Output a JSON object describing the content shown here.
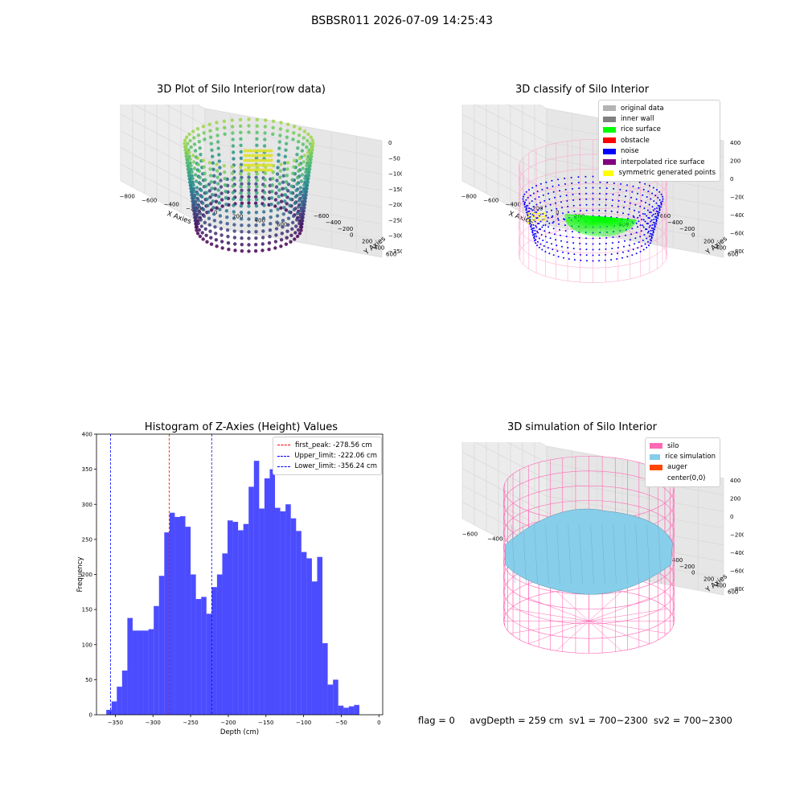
{
  "figure": {
    "suptitle": "BSBSR011 2026-07-09 14:25:43",
    "footer": {
      "flag": "flag = 0",
      "avg_depth": "avgDepth = 259 cm",
      "sv1": "sv1 = 700~2300",
      "sv2": "sv2 = 700~2300"
    }
  },
  "chart_data": [
    {
      "type": "scatter",
      "title": "3D Plot of Silo Interior(row data)",
      "xlabel": "X Axies",
      "ylabel": "Y Axies",
      "zlabel": "Z Axies (Depth)",
      "x_ticks": [
        "−800",
        "−600",
        "−400",
        "−200",
        "0",
        "200",
        "400",
        "600"
      ],
      "y_ticks": [
        "−600",
        "−400",
        "−200",
        "0",
        "200",
        "400",
        "600"
      ],
      "z_ticks": [
        "0",
        "−50",
        "−100",
        "−150",
        "−200",
        "−250",
        "−300",
        "−350"
      ],
      "colormap": "viridis"
    },
    {
      "type": "scatter",
      "title": "3D classify of Silo Interior",
      "xlabel": "X Axies",
      "ylabel": "Y Axies",
      "zlabel": "Z Axies (Depth)",
      "x_ticks": [
        "−800",
        "−600",
        "−400",
        "−200",
        "0",
        "200",
        "400",
        "600"
      ],
      "y_ticks": [
        "−600",
        "−400",
        "−200",
        "0",
        "200",
        "400",
        "600"
      ],
      "z_ticks": [
        "400",
        "200",
        "0",
        "−200",
        "−400",
        "−600",
        "−800"
      ],
      "legend": [
        {
          "label": "original data",
          "color": "#b3b3b3"
        },
        {
          "label": "inner wall",
          "color": "#808080"
        },
        {
          "label": "rice surface",
          "color": "#00ff00"
        },
        {
          "label": "obstacle",
          "color": "#ff0000"
        },
        {
          "label": "noise",
          "color": "#0000ff"
        },
        {
          "label": "interpolated rice surface",
          "color": "#800080"
        },
        {
          "label": "symmetric generated points",
          "color": "#ffff00"
        }
      ]
    },
    {
      "type": "bar",
      "title": "Histogram of Z-Axies (Height) Values",
      "xlabel": "Depth (cm)",
      "ylabel": "Frequency",
      "xlim": [
        -375,
        5
      ],
      "ylim": [
        0,
        400
      ],
      "x_ticks": [
        -350,
        -300,
        -250,
        -200,
        -150,
        -100,
        -50,
        0
      ],
      "y_ticks": [
        0,
        50,
        100,
        150,
        200,
        250,
        300,
        350,
        400
      ],
      "bin_start": -362,
      "bin_width": 7,
      "values": [
        7,
        19,
        40,
        63,
        138,
        120,
        120,
        120,
        122,
        155,
        198,
        260,
        288,
        282,
        283,
        268,
        200,
        165,
        168,
        144,
        182,
        200,
        230,
        277,
        275,
        263,
        272,
        325,
        362,
        294,
        337,
        350,
        295,
        290,
        300,
        280,
        262,
        232,
        223,
        190,
        225,
        102,
        43,
        50,
        13,
        10,
        12,
        14
      ],
      "bar_color": "#0000ff",
      "vlines": [
        {
          "label": "first_peak: -278.56 cm",
          "x": -278.56,
          "color": "#ff0000"
        },
        {
          "label": "Upper_limit: -222.06 cm",
          "x": -222.06,
          "color": "#0000ff"
        },
        {
          "label": "Lower_limit: -356.24 cm",
          "x": -356.24,
          "color": "#0000ff"
        }
      ],
      "legend_position": "upper right"
    },
    {
      "type": "scatter",
      "title": "3D simulation of Silo Interior",
      "xlabel": "X Axies",
      "ylabel": "Y Axies",
      "zlabel": "Z Axies (Depth)",
      "x_ticks": [
        "−600",
        "−400",
        "−200",
        "0",
        "200",
        "400",
        "600"
      ],
      "y_ticks": [
        "−600",
        "−400",
        "−200",
        "0",
        "200",
        "400",
        "600"
      ],
      "z_ticks": [
        "400",
        "200",
        "0",
        "−200",
        "−400",
        "−600",
        "−800"
      ],
      "legend": [
        {
          "label": "silo",
          "color": "#ff69b4"
        },
        {
          "label": "rice simulation",
          "color": "#87ceeb"
        },
        {
          "label": "auger",
          "color": "#ff4500"
        },
        {
          "label": "center(0,0)",
          "color": "#ffffff"
        }
      ]
    }
  ]
}
